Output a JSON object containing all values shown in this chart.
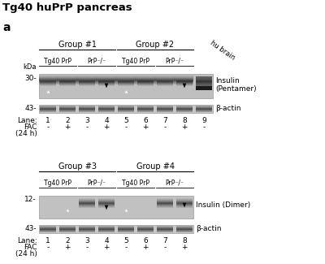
{
  "title": "Tg40 huPrP pancreas",
  "panel_label": "a",
  "bg_color": "#ffffff",
  "top_panel": {
    "group1_label": "Group #1",
    "group2_label": "Group #2",
    "subgroup1a": "Tg40 PrP",
    "subgroup1b": "PrP⁻/⁻",
    "subgroup2a": "Tg40 PrP",
    "subgroup2b": "PrP⁻/⁻",
    "hu_brain_label": "hu brain",
    "kda_label": "kDa",
    "kda30": "30-",
    "kda43": "43-",
    "insulin_label": "Insulin\n(Pentamer)",
    "bactin_label": "β-actin",
    "lane_label": "Lane:",
    "lanes": [
      "1",
      "2",
      "3",
      "4",
      "5",
      "6",
      "7",
      "8",
      "9"
    ],
    "fac_label": "FAC",
    "fac_vals": [
      "-",
      "+",
      "-",
      "+",
      "-",
      "+",
      "-",
      "+",
      "-"
    ],
    "time_label": "(24 h)"
  },
  "bottom_panel": {
    "group3_label": "Group #3",
    "group4_label": "Group #4",
    "subgroup3a": "Tg40 PrP",
    "subgroup3b": "PrP⁻/⁻",
    "subgroup4a": "Tg40 PrP",
    "subgroup4b": "PrP⁻/⁻",
    "kda12": "12-",
    "kda43": "43-",
    "insulin_label": "Insulin (Dimer)",
    "bactin_label": "β-actin",
    "lane_label": "Lane:",
    "lanes": [
      "1",
      "2",
      "3",
      "4",
      "5",
      "6",
      "7",
      "8"
    ],
    "fac_label": "FAC",
    "fac_vals": [
      "-",
      "+",
      "-",
      "+",
      "-",
      "+",
      "-",
      "+"
    ],
    "time_label": "(24 h)"
  }
}
